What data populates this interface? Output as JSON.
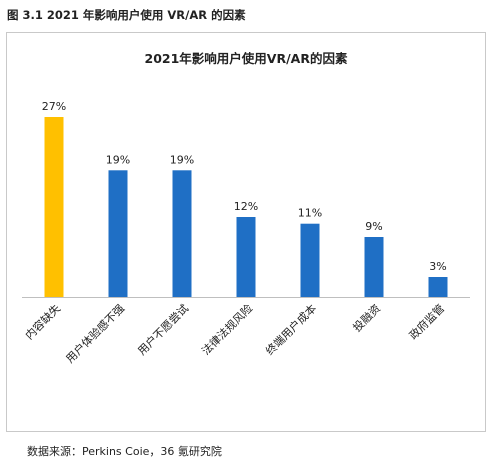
{
  "figure_caption": "图 3.1 2021 年影响用户使用 VR/AR 的因素",
  "source_note": "数据来源：Perkins Coie，36 氪研究院",
  "colors": {
    "highlight": "#FFC000",
    "bar": "#1F6FC5",
    "axis": "#BFBFBF"
  },
  "chart_data": {
    "type": "bar",
    "title": "2021年影响用户使用VR/AR的因素",
    "categories": [
      "内容缺失",
      "用户体验感不强",
      "用户不愿尝试",
      "法律法规风险",
      "终端用户成本",
      "投融资",
      "政府监管"
    ],
    "values": [
      27,
      19,
      19,
      12,
      11,
      9,
      3
    ],
    "data_labels": [
      "27%",
      "19%",
      "19%",
      "12%",
      "11%",
      "9%",
      "3%"
    ],
    "highlight_index": 0,
    "ylim": [
      0,
      30
    ],
    "xlabel": "",
    "ylabel": "",
    "grid": false,
    "legend": "none"
  }
}
